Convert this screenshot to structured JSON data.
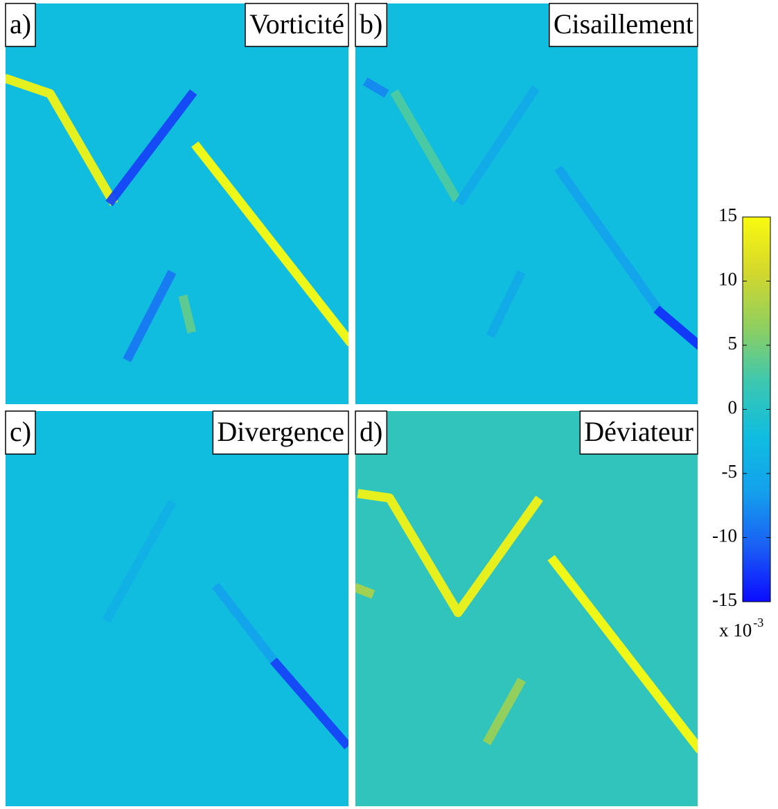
{
  "chart_data": {
    "type": "heatmap",
    "clim": [
      -15,
      15
    ],
    "colorbar_ticks": [
      15,
      10,
      5,
      0,
      -5,
      -10,
      -15
    ],
    "colorbar_multiplier": "x 10",
    "colorbar_exponent": "-3",
    "colormap": [
      "#0b0bff",
      "#1a5ef5",
      "#14a0ec",
      "#0fbde0",
      "#3dc7b0",
      "#8fcf5e",
      "#d4d82c",
      "#fafa0f"
    ],
    "panels": [
      {
        "label": "a)",
        "title": "Vorticité",
        "background": -2,
        "streaks": [
          {
            "x": [
              1,
              13,
              31
            ],
            "y": [
              19,
              22.5,
              49
            ],
            "value": 14
          },
          {
            "x": [
              31,
              54
            ],
            "y": [
              49,
              23
            ],
            "value": -12
          },
          {
            "x": [
              56,
              100
            ],
            "y": [
              36,
              84
            ],
            "value": 15
          },
          {
            "x": [
              48,
              36
            ],
            "y": [
              68,
              88
            ],
            "value": -9
          },
          {
            "x": [
              52,
              54
            ],
            "y": [
              74,
              81
            ],
            "value": 4
          }
        ]
      },
      {
        "label": "b)",
        "title": "Cisaillement",
        "background": -2,
        "streaks": [
          {
            "x": [
              4,
              8
            ],
            "y": [
              20,
              22
            ],
            "value": -8
          },
          {
            "x": [
              12,
              29
            ],
            "y": [
              23,
              48
            ],
            "value": 3
          },
          {
            "x": [
              31,
              52
            ],
            "y": [
              49,
              22
            ],
            "value": -5
          },
          {
            "x": [
              60,
              89
            ],
            "y": [
              42,
              77
            ],
            "value": -6
          },
          {
            "x": [
              89,
              100
            ],
            "y": [
              77,
              85
            ],
            "value": -13
          },
          {
            "x": [
              48,
              40
            ],
            "y": [
              68,
              82
            ],
            "value": -5
          }
        ]
      },
      {
        "label": "c)",
        "title": "Divergence",
        "background": -2,
        "streaks": [
          {
            "x": [
              62,
              79
            ],
            "y": [
              45,
              64
            ],
            "value": -6
          },
          {
            "x": [
              79,
              99
            ],
            "y": [
              64,
              84
            ],
            "value": -12
          },
          {
            "x": [
              48,
              30
            ],
            "y": [
              24,
              52
            ],
            "value": -4
          }
        ]
      },
      {
        "label": "d)",
        "title": "Déviateur",
        "background": 1,
        "streaks": [
          {
            "x": [
              2,
              10,
              30,
              53
            ],
            "y": [
              21,
              22,
              51,
              23
            ],
            "value": 14
          },
          {
            "x": [
              58,
              100
            ],
            "y": [
              38,
              85
            ],
            "value": 15
          },
          {
            "x": [
              48,
              39
            ],
            "y": [
              69,
              83
            ],
            "value": 7
          },
          {
            "x": [
              1,
              4
            ],
            "y": [
              45,
              46
            ],
            "value": 8
          }
        ]
      }
    ]
  }
}
